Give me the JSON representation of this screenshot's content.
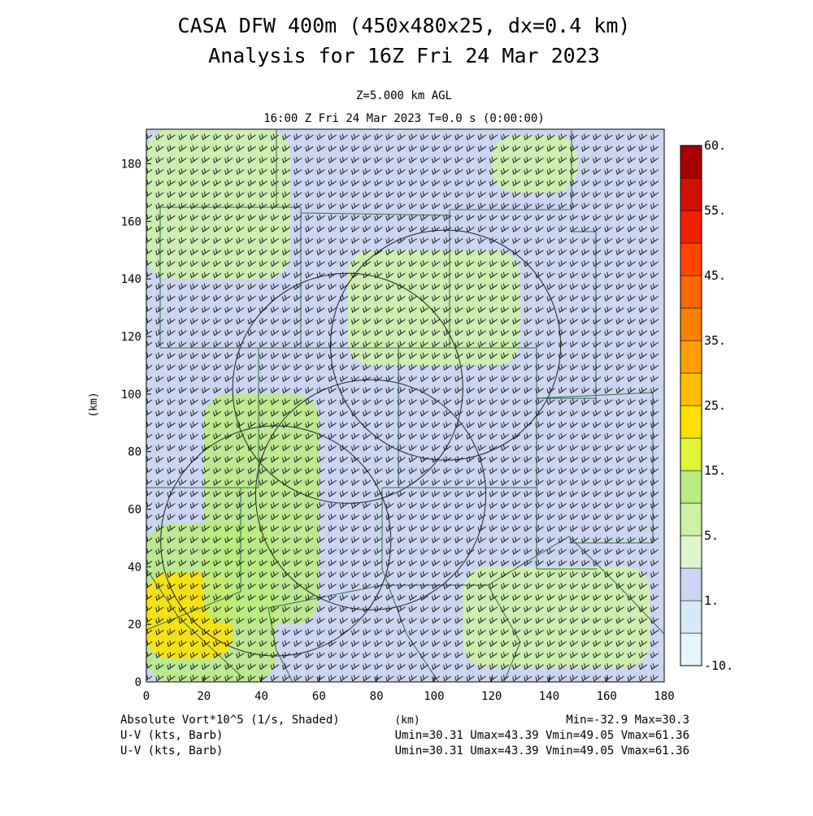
{
  "chart_data": {
    "type": "heatmap",
    "title": "CASA DFW 400m (450x480x25, dx=0.4 km)",
    "subtitle": "Analysis for 16Z Fri 24 Mar 2023",
    "level_label": "Z=5.000 km AGL",
    "time_label": "16:00 Z Fri 24 Mar 2023    T=0.0 s (0:00:00)",
    "xlabel": "(km)",
    "ylabel": "(km)",
    "xlim": [
      0,
      180
    ],
    "ylim": [
      0,
      192
    ],
    "x_ticks": [
      0,
      20,
      40,
      60,
      80,
      100,
      120,
      140,
      160,
      180
    ],
    "x_tick_labels": [
      "0",
      "20",
      "40",
      "60",
      "80",
      "100",
      "120",
      "140",
      "160",
      "180"
    ],
    "y_ticks": [
      0,
      20,
      40,
      60,
      80,
      100,
      120,
      140,
      160,
      180
    ],
    "y_tick_labels": [
      "0",
      "20",
      "40",
      "60",
      "80",
      "100",
      "120",
      "140",
      "160",
      "180"
    ],
    "colorbar": {
      "levels": [
        -10,
        1,
        5,
        15,
        25,
        35,
        45,
        55,
        60
      ],
      "labels": [
        "-10.",
        "1.",
        "5.",
        "15.",
        "25.",
        "35.",
        "45.",
        "55.",
        "60."
      ],
      "colors": [
        "#e6f4fb",
        "#d6e9f6",
        "#ccd6f2",
        "#ddf6cc",
        "#ccf2a6",
        "#b8ec80",
        "#e0f53a",
        "#ffe000",
        "#ffbf00",
        "#ffa000",
        "#ff8000",
        "#ff6600",
        "#ff4400",
        "#f02000",
        "#d01000",
        "#a80000"
      ]
    },
    "regions": [
      {
        "x": [
          0,
          180
        ],
        "y": [
          0,
          192
        ],
        "value": 2
      },
      {
        "x": [
          0,
          45
        ],
        "y": [
          0,
          55
        ],
        "value": 14
      },
      {
        "x": [
          0,
          30
        ],
        "y": [
          8,
          38
        ],
        "value": 24
      },
      {
        "x": [
          20,
          60
        ],
        "y": [
          20,
          100
        ],
        "value": 10
      },
      {
        "x": [
          70,
          130
        ],
        "y": [
          110,
          150
        ],
        "value": 9
      },
      {
        "x": [
          110,
          175
        ],
        "y": [
          5,
          40
        ],
        "value": 7
      },
      {
        "x": [
          120,
          150
        ],
        "y": [
          170,
          190
        ],
        "value": 7
      },
      {
        "x": [
          0,
          50
        ],
        "y": [
          140,
          192
        ],
        "value": 6
      }
    ],
    "radar_rings": [
      {
        "cx": 45,
        "cy": 49,
        "r": 40
      },
      {
        "cx": 78,
        "cy": 65,
        "r": 40
      },
      {
        "cx": 70,
        "cy": 102,
        "r": 40
      },
      {
        "cx": 104,
        "cy": 117,
        "r": 40
      }
    ],
    "wind_barbs": {
      "units": "kts",
      "spacing_km": 4,
      "direction_deg": 235,
      "speed_min": 30.31,
      "speed_max": 61.36
    },
    "stats": {
      "field_label": "Absolute Vort*10^5 (1/s, Shaded)",
      "center_label": "(km)",
      "minmax": "Min=-32.9 Max=30.3",
      "uv_label_1": "U-V (kts, Barb)",
      "uv_stats_1": "Umin=30.31 Umax=43.39 Vmin=49.05 Vmax=61.36",
      "uv_label_2": "U-V (kts, Barb)",
      "uv_stats_2": "Umin=30.31 Umax=43.39 Vmin=49.05 Vmax=61.36"
    }
  }
}
